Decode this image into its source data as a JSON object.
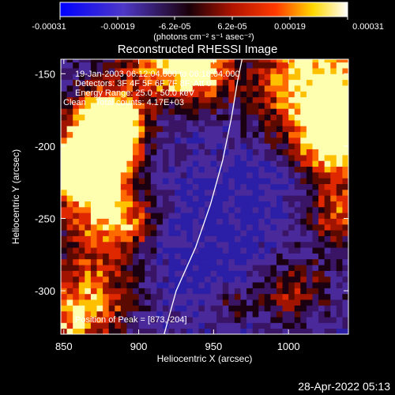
{
  "colorbar": {
    "ticks": [
      "-0.00031",
      "-0.00019",
      "-6.2e-05",
      "6.2e-05",
      "0.00019",
      "0.00031"
    ],
    "unit_label": "(photons cm⁻² s⁻¹ asec⁻²)",
    "range": [
      -0.00031,
      0.00031
    ],
    "colormap_stops": [
      "#0000ff",
      "#5a3fc8",
      "#0a0000",
      "#b01400",
      "#ff3a00",
      "#ffd800",
      "#ffffff"
    ]
  },
  "chart_data": {
    "type": "heatmap",
    "title": "Reconstructed RHESSI Image",
    "xlabel": "Heliocentric X (arcsec)",
    "ylabel": "Heliocentric Y (arcsec)",
    "xlim": [
      848,
      1040
    ],
    "ylim": [
      -330,
      -140
    ],
    "xticks": [
      "850",
      "900",
      "950",
      "1000"
    ],
    "xtick_values": [
      850,
      900,
      950,
      1000
    ],
    "yticks": [
      "-150",
      "-200",
      "-250",
      "-300"
    ],
    "ytick_values": [
      -150,
      -200,
      -250,
      -300
    ],
    "annotations": [
      "19-Jan-2003 06:12:04.000 to 06:18:04.000",
      "Detectors: 3F 4F 5F 6F 7F 8F, Att 0",
      "Energy Range: 25.0 - 50.0 keV",
      "Clean    Total counts: 4.17E+03"
    ],
    "peak_label": "Position of Peak = [873,-204]",
    "peak": [
      873,
      -204
    ],
    "limb_curve": [
      [
        917,
        -330
      ],
      [
        925,
        -300
      ],
      [
        938,
        -270
      ],
      [
        948,
        -240
      ],
      [
        956,
        -210
      ],
      [
        962,
        -180
      ],
      [
        966,
        -155
      ],
      [
        969,
        -140
      ]
    ],
    "grid": false
  },
  "timestamp": "28-Apr-2022 05:13"
}
